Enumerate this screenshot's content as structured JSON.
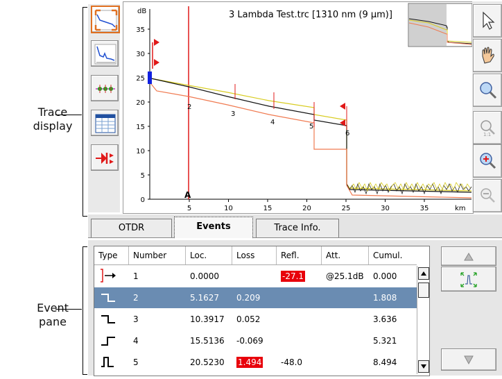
{
  "callouts": {
    "trace_display": [
      "Trace",
      "display"
    ],
    "event_pane": [
      "Event",
      "pane"
    ]
  },
  "graph": {
    "title": "3 Lambda Test.trc [1310 nm (9 μm)]",
    "y_unit": "dB",
    "x_unit": "km",
    "y_ticks": [
      "35",
      "30",
      "25",
      "20",
      "15",
      "10",
      "5",
      "0"
    ],
    "x_ticks": [
      "5",
      "10",
      "15",
      "20",
      "25",
      "30",
      "35"
    ],
    "marker_label": "A",
    "event_labels": [
      "2",
      "3",
      "4",
      "5",
      "6"
    ],
    "colors": {
      "trace_black": "#111111",
      "trace_yellow": "#d8cc20",
      "trace_orange": "#f07a50",
      "marker": "#e01818",
      "blue": "#1020e0"
    }
  },
  "left_tools": [
    {
      "name": "full-trace-view-icon",
      "active": true
    },
    {
      "name": "zoomed-trace-icon",
      "active": false
    },
    {
      "name": "event-view-icon",
      "active": false
    },
    {
      "name": "table-view-icon",
      "active": false
    },
    {
      "name": "fault-event-icon",
      "active": false
    }
  ],
  "right_tools": [
    "pointer-icon",
    "hand-pan-icon",
    "zoom-area-icon",
    "zoom-1to1-icon",
    "zoom-in-icon",
    "zoom-out-icon"
  ],
  "tabs": [
    {
      "label": "OTDR",
      "active": false
    },
    {
      "label": "Events",
      "active": true
    },
    {
      "label": "Trace Info.",
      "active": false
    }
  ],
  "table": {
    "headers": [
      "Type",
      "Number",
      "Loc.",
      "Loss",
      "Refl.",
      "Att.",
      "Cumul."
    ],
    "rows": [
      {
        "type": "launch",
        "number": "1",
        "loc": "0.0000",
        "loss": "",
        "loss_hl": false,
        "refl": "-27.1",
        "refl_hl": true,
        "att": "@25.1dB",
        "cumul": "0.000",
        "selected": false
      },
      {
        "type": "loss-down",
        "number": "2",
        "loc": "5.1627",
        "loss": "0.209",
        "loss_hl": false,
        "refl": "",
        "refl_hl": false,
        "att": "",
        "cumul": "1.808",
        "selected": true
      },
      {
        "type": "loss-down",
        "number": "3",
        "loc": "10.3917",
        "loss": "0.052",
        "loss_hl": false,
        "refl": "",
        "refl_hl": false,
        "att": "",
        "cumul": "3.636",
        "selected": false
      },
      {
        "type": "gain-up",
        "number": "4",
        "loc": "15.5136",
        "loss": "-0.069",
        "loss_hl": false,
        "refl": "",
        "refl_hl": false,
        "att": "",
        "cumul": "5.321",
        "selected": false
      },
      {
        "type": "reflective",
        "number": "5",
        "loc": "20.5230",
        "loss": "1.494",
        "loss_hl": true,
        "refl": "-48.0",
        "refl_hl": false,
        "att": "",
        "cumul": "8.494",
        "selected": false
      }
    ]
  },
  "event_buttons": [
    "up-arrow-icon",
    "event-zoom-icon",
    "down-arrow-icon"
  ]
}
